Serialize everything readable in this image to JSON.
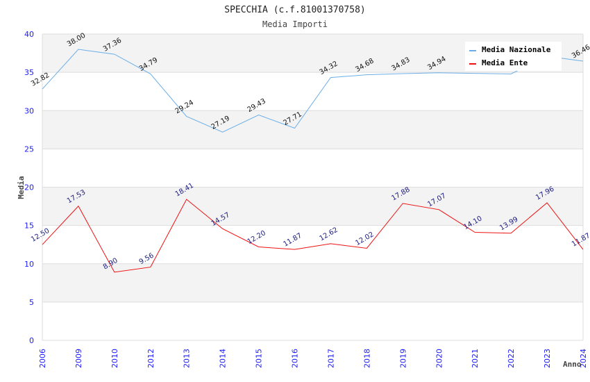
{
  "chart_data": {
    "type": "line",
    "title": "SPECCHIA (c.f.81001370758)",
    "subtitle": "Media Importi",
    "xlabel": "Anno",
    "ylabel": "Media",
    "ylim": [
      0,
      40
    ],
    "yticks": [
      "0",
      "5",
      "10",
      "15",
      "20",
      "25",
      "30",
      "35",
      "40"
    ],
    "ytick_values": [
      0,
      5,
      10,
      15,
      20,
      25,
      30,
      35,
      40
    ],
    "grid": true,
    "legend_position": "top-right",
    "categories": [
      "2006",
      "2009",
      "2010",
      "2012",
      "2013",
      "2014",
      "2015",
      "2016",
      "2017",
      "2018",
      "2019",
      "2020",
      "2021",
      "2022",
      "2023",
      "2024"
    ],
    "series": [
      {
        "name": "Media Nazionale",
        "color": "#6aaee8",
        "values": [
          32.82,
          38.0,
          37.36,
          34.79,
          29.24,
          27.19,
          29.43,
          27.71,
          34.32,
          34.68,
          34.83,
          34.94,
          34.86,
          34.79,
          37.1,
          36.46
        ],
        "labels": [
          "32.82",
          "38.00",
          "37.36",
          "34.79",
          "29.24",
          "27.19",
          "29.43",
          "27.71",
          "34.32",
          "34.68",
          "34.83",
          "34.94",
          "",
          "",
          "",
          "36.46"
        ]
      },
      {
        "name": "Media Ente",
        "color": "#ee1111",
        "values": [
          12.5,
          17.53,
          8.9,
          9.56,
          18.41,
          14.57,
          12.2,
          11.87,
          12.62,
          12.02,
          17.88,
          17.07,
          14.1,
          13.99,
          17.96,
          11.87
        ],
        "labels": [
          "12.50",
          "17.53",
          "8.90",
          "9.56",
          "18.41",
          "14.57",
          "12.20",
          "11.87",
          "12.62",
          "12.02",
          "17.88",
          "17.07",
          "14.10",
          "13.99",
          "17.96",
          "11.87"
        ]
      }
    ]
  },
  "colors": {
    "band": "#f3f3f3",
    "grid": "#dddddd",
    "tick_text": "#1a1aff"
  }
}
